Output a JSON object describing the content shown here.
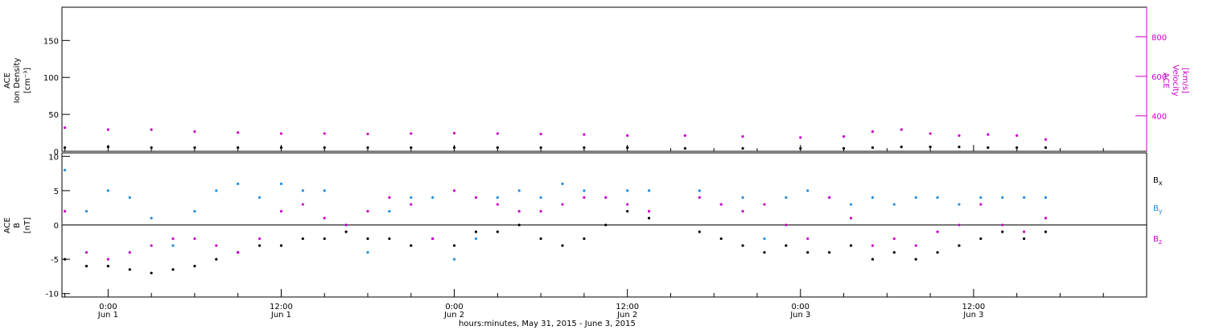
{
  "chart_data": [
    {
      "type": "scatter",
      "panel": "ion-density-velocity",
      "ylabel_lines": [
        "ACE",
        "Ion Density",
        "[cm⁻³]"
      ],
      "ylim": [
        0,
        195
      ],
      "yticks": [
        "0",
        "50",
        "100",
        "150"
      ],
      "y2label_lines": [
        "ACE",
        "Velocity",
        "[km/s]"
      ],
      "y2lim": [
        220,
        950
      ],
      "y2ticks": [
        "400",
        "600",
        "800"
      ],
      "xlim_hours": [
        -3.2,
        72
      ],
      "series": [
        {
          "color": "#000000",
          "axis": "left",
          "x": [
            -3,
            0,
            3,
            6,
            9,
            12,
            15,
            18,
            21,
            24,
            27,
            30,
            33,
            36,
            40,
            44,
            48,
            51,
            53,
            55,
            57,
            59,
            61,
            63,
            65
          ],
          "y": [
            5,
            6,
            5,
            5,
            5,
            5,
            5,
            5,
            5,
            5,
            5,
            5,
            5,
            5,
            4,
            4,
            4,
            4,
            5,
            6,
            6,
            6,
            5,
            5,
            5
          ]
        },
        {
          "color": "#cc00cc",
          "axis": "right",
          "x": [
            -3,
            0,
            3,
            6,
            9,
            12,
            15,
            18,
            21,
            24,
            27,
            30,
            33,
            36,
            40,
            44,
            48,
            51,
            53,
            55,
            57,
            59,
            61,
            63,
            65
          ],
          "y": [
            340,
            330,
            330,
            320,
            315,
            310,
            310,
            308,
            310,
            312,
            310,
            308,
            305,
            300,
            300,
            295,
            290,
            295,
            320,
            330,
            310,
            300,
            305,
            300,
            280
          ]
        }
      ]
    },
    {
      "type": "scatter",
      "panel": "magnetic-field",
      "ylabel_lines": [
        "ACE",
        "B",
        "[nT]"
      ],
      "ylim": [
        -10.5,
        10.5
      ],
      "yticks": [
        "-10",
        "-5",
        "0",
        "5",
        "10"
      ],
      "xlim_hours": [
        -3.2,
        72
      ],
      "series": [
        {
          "name": "Bx",
          "color": "#000000",
          "x": [
            -3,
            -1.5,
            0,
            1.5,
            3,
            4.5,
            6,
            7.5,
            9,
            10.5,
            12,
            13.5,
            15,
            16.5,
            18,
            19.5,
            21,
            22.5,
            24,
            25.5,
            27,
            28.5,
            30,
            31.5,
            33,
            34.5,
            36,
            37.5,
            41,
            42.5,
            44,
            45.5,
            47,
            48.5,
            50,
            51.5,
            53,
            54.5,
            56,
            57.5,
            59,
            60.5,
            62,
            63.5,
            65
          ],
          "y": [
            -5,
            -6,
            -6,
            -6.5,
            -7,
            -6.5,
            -6,
            -5,
            -4,
            -3,
            -3,
            -2,
            -2,
            -1,
            -2,
            -2,
            -3,
            -2,
            -3,
            -1,
            -1,
            0,
            -2,
            -3,
            -2,
            0,
            2,
            1,
            -1,
            -2,
            -3,
            -4,
            -3,
            -4,
            -4,
            -3,
            -5,
            -4,
            -5,
            -4,
            -3,
            -2,
            -1,
            -2,
            -1
          ]
        },
        {
          "name": "By",
          "color": "#1f8ee0",
          "x": [
            -3,
            -1.5,
            0,
            1.5,
            3,
            4.5,
            6,
            7.5,
            9,
            10.5,
            12,
            13.5,
            15,
            16.5,
            18,
            19.5,
            21,
            22.5,
            24,
            25.5,
            27,
            28.5,
            30,
            31.5,
            33,
            34.5,
            36,
            37.5,
            41,
            42.5,
            44,
            45.5,
            47,
            48.5,
            50,
            51.5,
            53,
            54.5,
            56,
            57.5,
            59,
            60.5,
            62,
            63.5,
            65
          ],
          "y": [
            8,
            2,
            5,
            4,
            1,
            -3,
            2,
            5,
            6,
            4,
            6,
            5,
            5,
            0,
            -4,
            2,
            4,
            4,
            -5,
            -2,
            4,
            5,
            4,
            6,
            5,
            4,
            5,
            5,
            5,
            3,
            4,
            -2,
            4,
            5,
            4,
            3,
            4,
            3,
            4,
            4,
            3,
            4,
            4,
            4,
            4
          ]
        },
        {
          "name": "Bz",
          "color": "#cc00cc",
          "x": [
            -3,
            -1.5,
            0,
            1.5,
            3,
            4.5,
            6,
            7.5,
            9,
            10.5,
            12,
            13.5,
            15,
            16.5,
            18,
            19.5,
            21,
            22.5,
            24,
            25.5,
            27,
            28.5,
            30,
            31.5,
            33,
            34.5,
            36,
            37.5,
            41,
            42.5,
            44,
            45.5,
            47,
            48.5,
            50,
            51.5,
            53,
            54.5,
            56,
            57.5,
            59,
            60.5,
            62,
            63.5,
            65
          ],
          "y": [
            2,
            -4,
            -5,
            -4,
            -3,
            -2,
            -2,
            -3,
            -4,
            -2,
            2,
            3,
            1,
            0,
            2,
            4,
            3,
            -2,
            5,
            4,
            3,
            2,
            2,
            3,
            4,
            4,
            3,
            2,
            4,
            3,
            2,
            3,
            0,
            -2,
            4,
            1,
            -3,
            -2,
            -3,
            -1,
            0,
            3,
            0,
            -1,
            1
          ]
        }
      ],
      "legend_placement": "right"
    }
  ],
  "x_ticks": [
    {
      "hour": 0,
      "time": "0:00",
      "day": "Jun 1"
    },
    {
      "hour": 12,
      "time": "12:00",
      "day": "Jun 1"
    },
    {
      "hour": 24,
      "time": "0:00",
      "day": "Jun 2"
    },
    {
      "hour": 36,
      "time": "12:00",
      "day": "Jun 2"
    },
    {
      "hour": 48,
      "time": "0:00",
      "day": "Jun 3"
    },
    {
      "hour": 60,
      "time": "12:00",
      "day": "Jun 3"
    }
  ],
  "xlabel": "hours:minutes, May 31, 2015 - June  3, 2015",
  "legend": {
    "bx_main": "B",
    "bx_sub": "x",
    "by_main": "B",
    "by_sub": "y",
    "bz_main": "B",
    "bz_sub": "z"
  },
  "colors": {
    "black": "#000000",
    "magenta": "#cc00cc",
    "blue": "#1f8ee0"
  }
}
